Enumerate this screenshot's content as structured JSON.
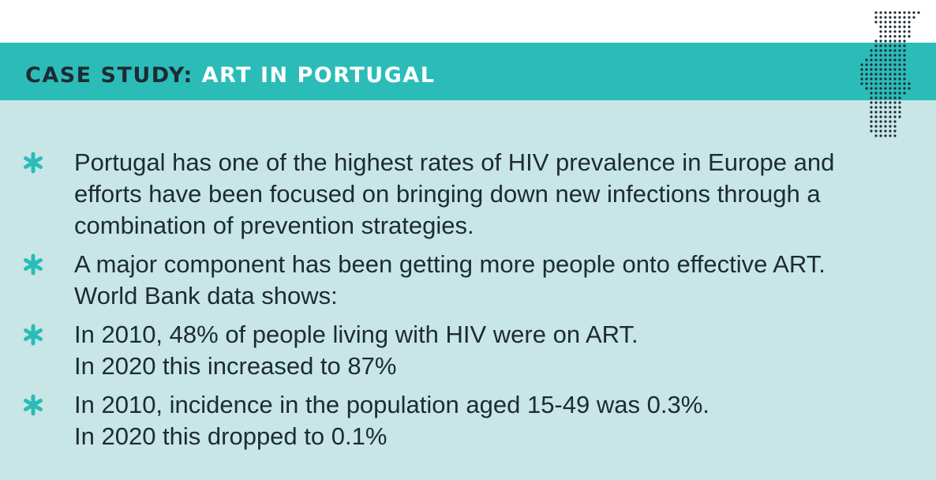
{
  "colors": {
    "header_band": "#2bbcb8",
    "body_panel": "#c8e6e6",
    "text_dark": "#1d2b33",
    "accent": "#2bbcb8",
    "header_suffix": "#ffffff"
  },
  "header": {
    "title_prefix": "CASE STUDY:",
    "title_suffix": "ART IN PORTUGAL"
  },
  "map_icon": {
    "name": "portugal-dot-map-icon"
  },
  "bullet_icon": {
    "name": "asterisk-icon"
  },
  "bullets": [
    {
      "lines": [
        "Portugal has one of the highest rates of HIV prevalence in Europe and",
        "efforts have been focused on bringing down new infections through a",
        "combination of prevention strategies."
      ]
    },
    {
      "lines": [
        "A major component has been getting more people onto effective ART.",
        "World Bank data shows:"
      ]
    },
    {
      "lines": [
        "In 2010, 48% of people living with HIV were on ART.",
        "In 2020 this increased to 87%"
      ]
    },
    {
      "lines": [
        "In 2010, incidence in the population aged 15-49 was 0.3%.",
        "In 2020 this dropped to 0.1%"
      ]
    }
  ]
}
